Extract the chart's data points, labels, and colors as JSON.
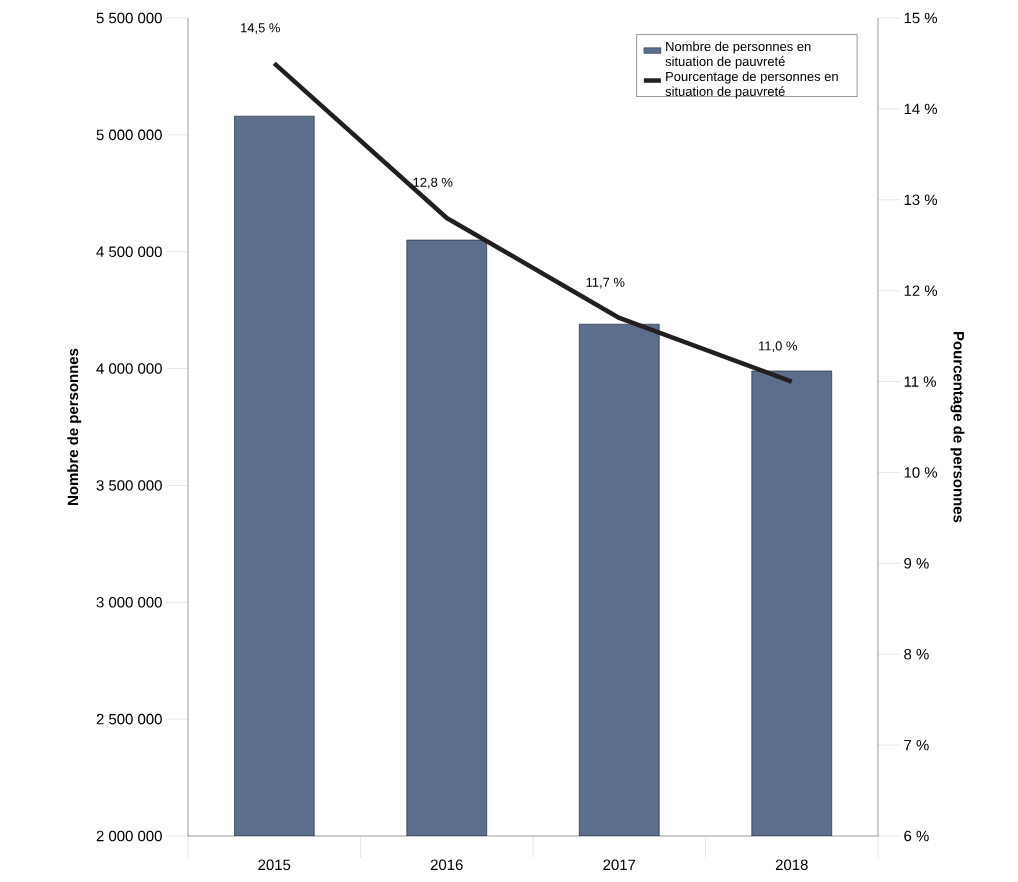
{
  "chart_data": {
    "type": "bar",
    "categories": [
      "2015",
      "2016",
      "2017",
      "2018"
    ],
    "ylabel": "Nombre de personnes",
    "y2label": "Pourcentage de personnes",
    "ylim": [
      2000000,
      5500000
    ],
    "yticks": [
      {
        "value": 2000000,
        "label": "2 000 000"
      },
      {
        "value": 2500000,
        "label": "2 500 000"
      },
      {
        "value": 3000000,
        "label": "3 000 000"
      },
      {
        "value": 3500000,
        "label": "3 500 000"
      },
      {
        "value": 4000000,
        "label": "4 000 000"
      },
      {
        "value": 4500000,
        "label": "4 500 000"
      },
      {
        "value": 5000000,
        "label": "5 000 000"
      },
      {
        "value": 5500000,
        "label": "5 500 000"
      }
    ],
    "y2lim": [
      6,
      15
    ],
    "y2ticks": [
      {
        "value": 6,
        "label": "6 %"
      },
      {
        "value": 7,
        "label": "7 %"
      },
      {
        "value": 8,
        "label": "8 %"
      },
      {
        "value": 9,
        "label": "9 %"
      },
      {
        "value": 10,
        "label": "10 %"
      },
      {
        "value": 11,
        "label": "11 %"
      },
      {
        "value": 12,
        "label": "12 %"
      },
      {
        "value": 13,
        "label": "13 %"
      },
      {
        "value": 14,
        "label": "14 %"
      },
      {
        "value": 15,
        "label": "15 %"
      }
    ],
    "legend": "top right",
    "series": [
      {
        "name": "Nombre de personnes en situation de pauvreté",
        "color": "#5b6f8c",
        "values": [
          5080000,
          4550000,
          4190000,
          3990000
        ]
      },
      {
        "name": "Pourcentage de personnes en situation de pauvreté",
        "type": "line",
        "axis": "y2",
        "color": "#231f20",
        "values": [
          14.5,
          12.8,
          11.7,
          11.0
        ],
        "value_labels": [
          "14,5 %",
          "12,8 %",
          "11,7 %",
          "11,0 %"
        ]
      }
    ]
  }
}
